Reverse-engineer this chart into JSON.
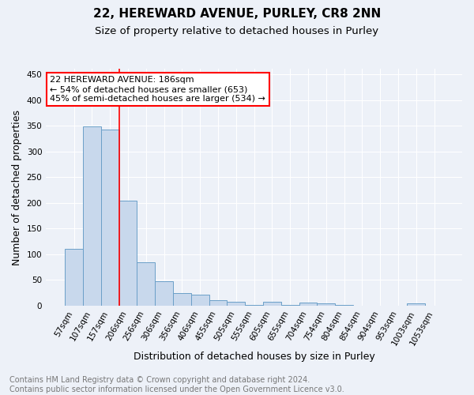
{
  "title1": "22, HEREWARD AVENUE, PURLEY, CR8 2NN",
  "title2": "Size of property relative to detached houses in Purley",
  "xlabel": "Distribution of detached houses by size in Purley",
  "ylabel": "Number of detached properties",
  "bar_color": "#c8d8ec",
  "bar_edge_color": "#6b9fc8",
  "background_color": "#edf1f8",
  "categories": [
    "57sqm",
    "107sqm",
    "157sqm",
    "206sqm",
    "256sqm",
    "306sqm",
    "356sqm",
    "406sqm",
    "455sqm",
    "505sqm",
    "555sqm",
    "605sqm",
    "655sqm",
    "704sqm",
    "754sqm",
    "804sqm",
    "854sqm",
    "904sqm",
    "953sqm",
    "1003sqm",
    "1053sqm"
  ],
  "values": [
    110,
    349,
    343,
    204,
    84,
    47,
    25,
    22,
    11,
    7,
    1,
    7,
    1,
    6,
    5,
    1,
    0,
    0,
    0,
    4,
    0
  ],
  "ylim": [
    0,
    460
  ],
  "yticks": [
    0,
    50,
    100,
    150,
    200,
    250,
    300,
    350,
    400,
    450
  ],
  "redline_x": 2.5,
  "annotation_line1": "22 HEREWARD AVENUE: 186sqm",
  "annotation_line2": "← 54% of detached houses are smaller (653)",
  "annotation_line3": "45% of semi-detached houses are larger (534) →",
  "annotation_box_color": "white",
  "annotation_box_edge": "red",
  "footer1": "Contains HM Land Registry data © Crown copyright and database right 2024.",
  "footer2": "Contains public sector information licensed under the Open Government Licence v3.0.",
  "grid_color": "#ffffff",
  "title_fontsize": 11,
  "subtitle_fontsize": 9.5,
  "axis_label_fontsize": 9,
  "tick_fontsize": 7.5,
  "annotation_fontsize": 8,
  "footer_fontsize": 7
}
